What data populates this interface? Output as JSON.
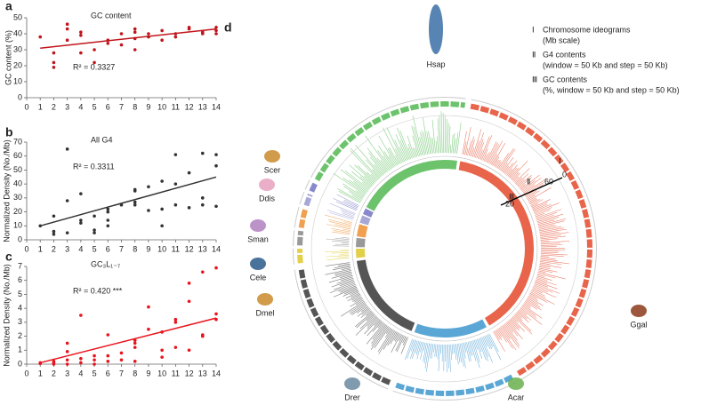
{
  "chart_data": [
    {
      "type": "scatter",
      "panel_label": "a",
      "title": "GC content",
      "y_label": "GC content (%)",
      "annotation": "R² = 0.3327",
      "color": "#c0151b",
      "x": [
        1,
        2,
        2,
        2,
        3,
        3,
        3,
        4,
        4,
        4,
        5,
        5,
        6,
        6,
        7,
        7,
        8,
        8,
        8,
        8,
        9,
        9,
        10,
        10,
        11,
        11,
        12,
        12,
        13,
        13,
        14,
        14,
        14
      ],
      "values": [
        38,
        28,
        22,
        19,
        46,
        43,
        36,
        41,
        39,
        28,
        30,
        22,
        36,
        34,
        40,
        33,
        43,
        41,
        37,
        30,
        40,
        38,
        42,
        36,
        40,
        38,
        44,
        43,
        41,
        40,
        44,
        42,
        40
      ],
      "fit": {
        "x": [
          1,
          14
        ],
        "values": [
          31,
          43
        ]
      },
      "xlim": [
        0,
        14
      ],
      "xticks": [
        0,
        1,
        2,
        3,
        4,
        5,
        6,
        7,
        8,
        9,
        10,
        11,
        12,
        13,
        14
      ],
      "ylim": [
        0,
        50
      ],
      "yticks": [
        0,
        10,
        20,
        30,
        40,
        50
      ]
    },
    {
      "type": "scatter",
      "panel_label": "b",
      "title": "All G4",
      "y_label": "Normalized Density (No./Mb)",
      "annotation": "R² = 0.3311",
      "color": "#333333",
      "x": [
        1,
        2,
        2,
        2,
        3,
        3,
        3,
        4,
        4,
        4,
        5,
        5,
        5,
        6,
        6,
        6,
        6,
        7,
        8,
        8,
        8,
        8,
        9,
        9,
        10,
        10,
        10,
        11,
        11,
        11,
        12,
        12,
        13,
        13,
        13,
        14,
        14,
        14
      ],
      "values": [
        10,
        17,
        6,
        4,
        65,
        28,
        5,
        33,
        14,
        12,
        17,
        7,
        5,
        22,
        20,
        14,
        10,
        25,
        36,
        35,
        27,
        25,
        38,
        21,
        42,
        22,
        10,
        61,
        40,
        25,
        48,
        23,
        62,
        30,
        25,
        61,
        53,
        24
      ],
      "fit": {
        "x": [
          1,
          14
        ],
        "values": [
          10,
          45
        ]
      },
      "xlim": [
        0,
        14
      ],
      "xticks": [
        0,
        1,
        2,
        3,
        4,
        5,
        6,
        7,
        8,
        9,
        10,
        11,
        12,
        13,
        14
      ],
      "ylim": [
        0,
        70
      ],
      "yticks": [
        0,
        10,
        20,
        30,
        40,
        50,
        60,
        70
      ]
    },
    {
      "type": "scatter",
      "panel_label": "c",
      "title": "GC₃L₁₋₇",
      "y_label": "Normalized Density (No./Mb)",
      "annotation": "R² = 0.420 ***",
      "color": "#e8141c",
      "x": [
        1,
        1,
        2,
        2,
        2,
        3,
        3,
        3,
        3,
        4,
        4,
        4,
        5,
        5,
        5,
        6,
        6,
        6,
        7,
        7,
        8,
        8,
        8,
        8,
        9,
        9,
        10,
        10,
        10,
        11,
        11,
        11,
        12,
        12,
        12,
        13,
        13,
        13,
        14,
        14,
        14
      ],
      "values": [
        0.1,
        0.05,
        0.2,
        0.1,
        0,
        1.5,
        0.9,
        0.3,
        0,
        3.5,
        0.4,
        0.1,
        0.6,
        0.3,
        0,
        2.1,
        0.6,
        0.2,
        0.8,
        0.3,
        1.7,
        1.5,
        1.2,
        0.2,
        4.1,
        2.5,
        2.3,
        1.0,
        0.5,
        3.2,
        3.0,
        1.2,
        5.8,
        4.5,
        1.0,
        6.6,
        2.1,
        2.0,
        6.9,
        3.6,
        3.2
      ],
      "fit": {
        "x": [
          1,
          14
        ],
        "values": [
          0.1,
          3.3
        ]
      },
      "xlim": [
        0,
        14
      ],
      "xticks": [
        0,
        1,
        2,
        3,
        4,
        5,
        6,
        7,
        8,
        9,
        10,
        11,
        12,
        13,
        14
      ],
      "ylim": [
        0,
        7
      ],
      "yticks": [
        0,
        1,
        2,
        3,
        4,
        5,
        6,
        7
      ]
    }
  ],
  "circos": {
    "panel_label": "d",
    "legend": [
      {
        "numeral": "Ⅰ",
        "text": [
          "Chromosome ideograms",
          "(Mb scale)"
        ]
      },
      {
        "numeral": "Ⅱ",
        "text": [
          "G4 contents",
          "(window = 50 Kb and step = 50 Kb)"
        ]
      },
      {
        "numeral": "Ⅲ",
        "text": [
          "GC contents",
          "(%, window = 50 Kb and step = 50 Kb)"
        ]
      }
    ],
    "species": [
      "Hsap",
      "Ggal",
      "Acar",
      "Drer",
      "Dmel",
      "Cele",
      "Sman",
      "Ddis",
      "Scer"
    ],
    "track_labels": [
      "Ⅰ",
      "Ⅱ",
      "Ⅲ"
    ],
    "scale_labels": [
      "20",
      "60",
      "0"
    ]
  }
}
